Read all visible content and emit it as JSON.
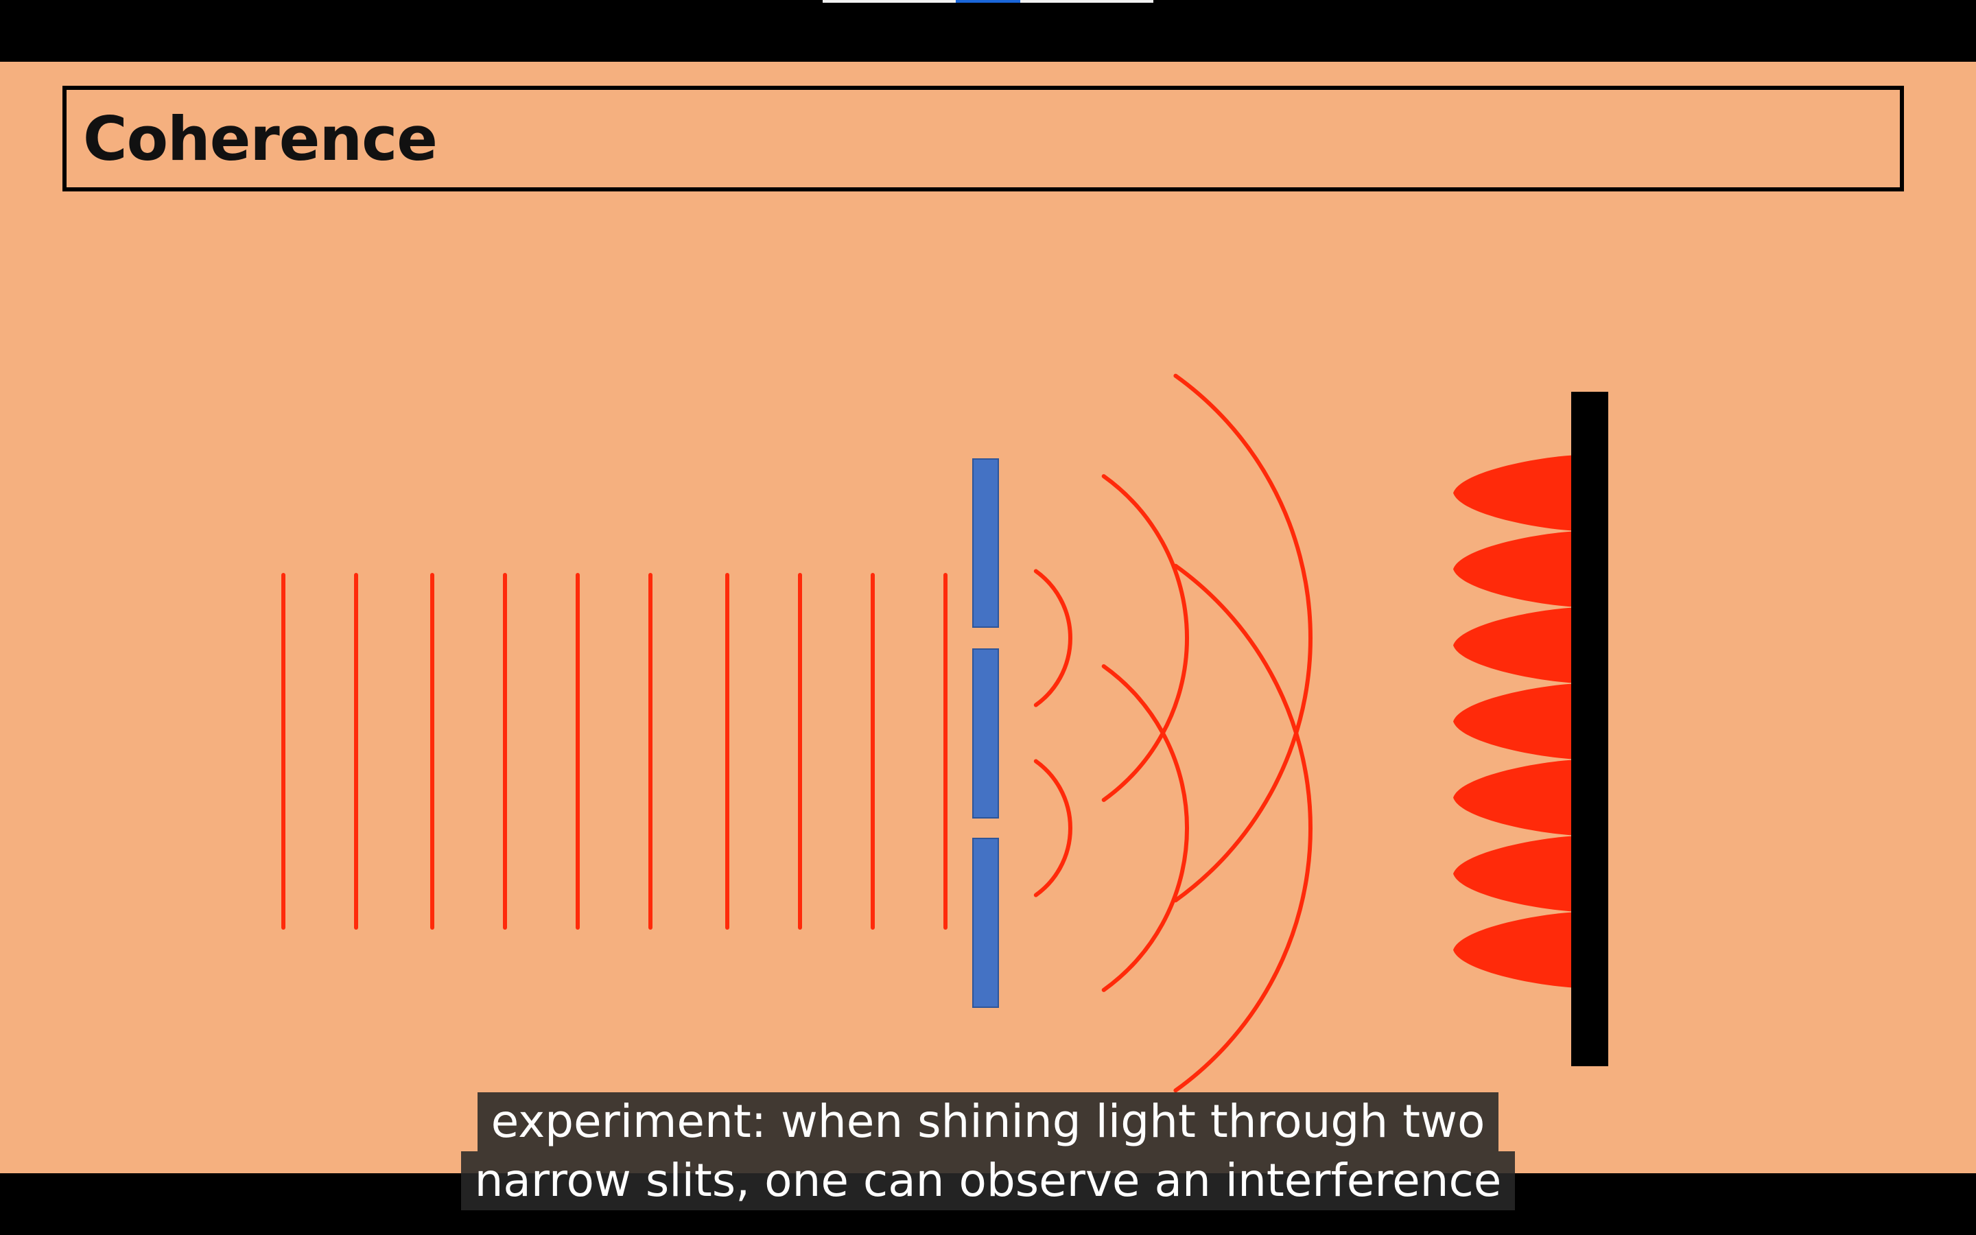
{
  "video": {
    "progress_fraction": 0.5
  },
  "slide": {
    "title": "Coherence",
    "background_color": "#f5b07f"
  },
  "diagram": {
    "plane_wave_count": 10,
    "slit_count": 2,
    "fringe_count": 7,
    "wave_color": "#ff2a0a",
    "barrier_color": "#4472c4",
    "screen_color": "#000000"
  },
  "subtitles": {
    "line_1": "experiment: when shining light through two",
    "line_2": "narrow slits, one can observe an interference"
  }
}
